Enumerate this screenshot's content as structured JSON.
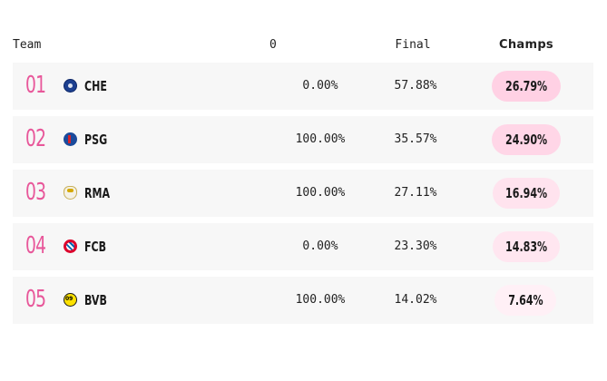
{
  "header": {
    "team": "Team",
    "col0": "0",
    "final": "Final",
    "champs": "Champs"
  },
  "rows": [
    {
      "rank": "01",
      "crest": "chelsea-crest-icon",
      "abbr": "CHE",
      "col0": "0.00%",
      "final": "57.88%",
      "champs": "26.79%",
      "champs_color": "#ffd1e4"
    },
    {
      "rank": "02",
      "crest": "psg-crest-icon",
      "abbr": "PSG",
      "col0": "100.00%",
      "final": "35.57%",
      "champs": "24.90%",
      "champs_color": "#ffd6e7"
    },
    {
      "rank": "03",
      "crest": "real-madrid-crest-icon",
      "abbr": "RMA",
      "col0": "100.00%",
      "final": "27.11%",
      "champs": "16.94%",
      "champs_color": "#ffe3ee"
    },
    {
      "rank": "04",
      "crest": "bayern-crest-icon",
      "abbr": "FCB",
      "col0": "0.00%",
      "final": "23.30%",
      "champs": "14.83%",
      "champs_color": "#ffe6f0"
    },
    {
      "rank": "05",
      "crest": "dortmund-crest-icon",
      "abbr": "BVB",
      "col0": "100.00%",
      "final": "14.02%",
      "champs": "7.64%",
      "champs_color": "#fff0f6"
    }
  ],
  "colors": {
    "rank": "#e8579a",
    "row_background": "#f7f7f7"
  }
}
